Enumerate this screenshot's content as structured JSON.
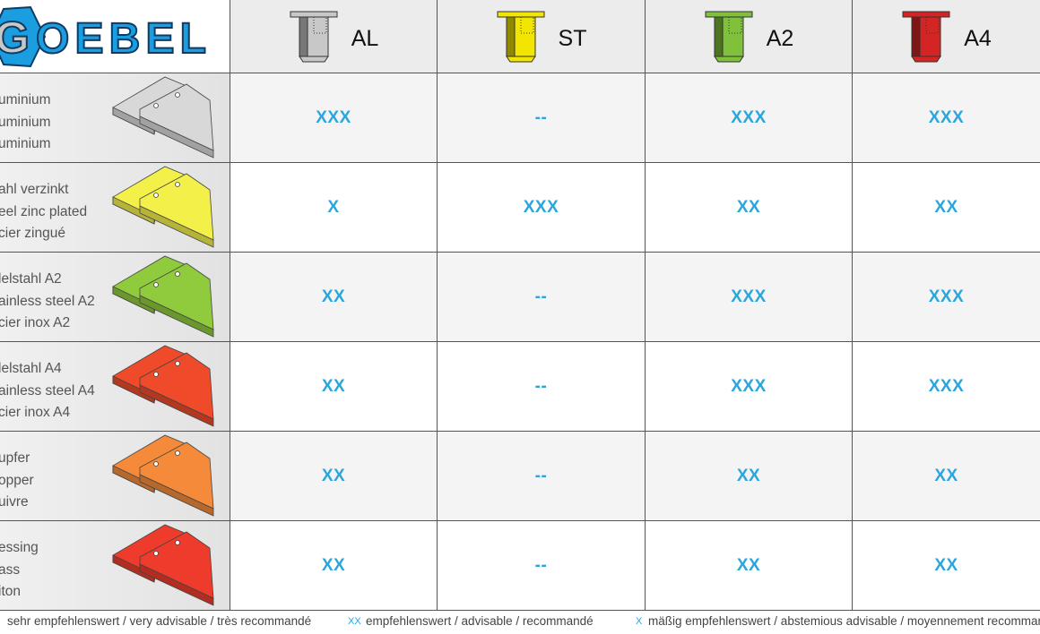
{
  "logo": {
    "text": "GOEBEL",
    "color": "#1a9ee0"
  },
  "columns": [
    {
      "label": "AL",
      "color": "#c8c8c8"
    },
    {
      "label": "ST",
      "color": "#f2e600"
    },
    {
      "label": "A2",
      "color": "#7fc13a"
    },
    {
      "label": "A4",
      "color": "#d42424"
    }
  ],
  "rows": [
    {
      "lines": [
        "uminium",
        "uminium",
        "uminium"
      ],
      "plate_color": "#d8d8d8",
      "ratings": [
        "XXX",
        "--",
        "XXX",
        "XXX"
      ]
    },
    {
      "lines": [
        "ahl verzinkt",
        "eel zinc plated",
        "cier zingué"
      ],
      "plate_color": "#f3f04a",
      "ratings": [
        "X",
        "XXX",
        "XX",
        "XX"
      ]
    },
    {
      "lines": [
        "lelstahl A2",
        "ainless steel A2",
        "cier inox A2"
      ],
      "plate_color": "#8fcb3c",
      "ratings": [
        "XX",
        "--",
        "XXX",
        "XXX"
      ]
    },
    {
      "lines": [
        "lelstahl A4",
        "ainless steel A4",
        "cier inox A4"
      ],
      "plate_color": "#ef4a2a",
      "ratings": [
        "XX",
        "--",
        "XXX",
        "XXX"
      ]
    },
    {
      "lines": [
        "upfer",
        "opper",
        "uivre"
      ],
      "plate_color": "#f48a3a",
      "ratings": [
        "XX",
        "--",
        "XX",
        "XX"
      ]
    },
    {
      "lines": [
        "essing",
        "ass",
        "iton"
      ],
      "plate_color": "#ee3b2b",
      "ratings": [
        "XX",
        "--",
        "XX",
        "XX"
      ]
    }
  ],
  "legend": {
    "xxx_text": "sehr empfehlenswert / very advisable / très recommandé",
    "xx_mark": "XX",
    "xx_text": "empfehlenswert / advisable /  recommandé",
    "x_mark": "X",
    "x_text": "mäßig empfehlenswert / abstemious advisable / moyennement recommand"
  }
}
